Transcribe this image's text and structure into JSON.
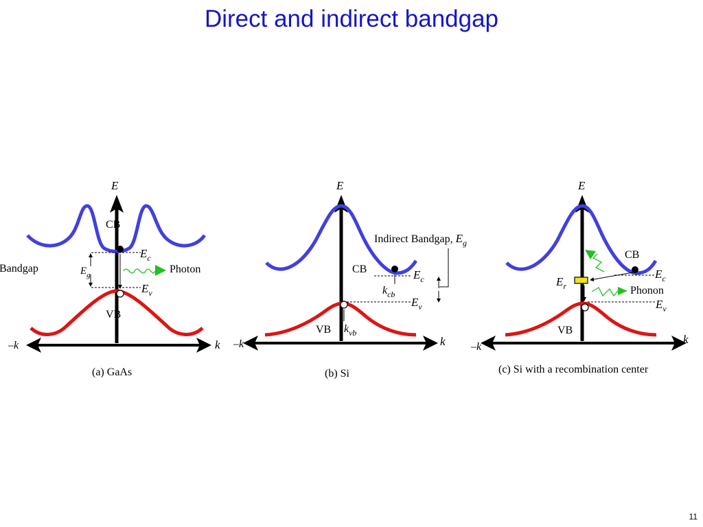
{
  "title": "Direct and indirect bandgap",
  "page_number": "11",
  "colors": {
    "title": "#1515c8",
    "cb_curve": "#4040e0",
    "vb_curve": "#dd1515",
    "photon_arrow": "#22c022",
    "trap": "#f2e21c"
  },
  "panels": {
    "a": {
      "caption": "(a) GaAs",
      "axis_e": "E",
      "axis_k": "k",
      "axis_neg_k": "–k",
      "cb": "CB",
      "vb": "VB",
      "ec": "E",
      "ec_sub": "c",
      "ev": "E",
      "ev_sub": "v",
      "eg": "E",
      "eg_sub": "g",
      "bandgap_label": "Direct Bandgap",
      "photon": "Photon"
    },
    "b": {
      "caption": "(b) Si",
      "axis_e": "E",
      "axis_k": "k",
      "axis_neg_k": "–k",
      "cb": "CB",
      "vb": "VB",
      "indirect_label": "Indirect Bandgap,",
      "eg": "E",
      "eg_sub": "g",
      "ec": "E",
      "ec_sub": "c",
      "ev": "E",
      "ev_sub": "v",
      "kcb": "k",
      "kcb_sub": "cb",
      "kvb": "k",
      "kvb_sub": "vb"
    },
    "c": {
      "caption": "(c) Si with a recombination center",
      "axis_e": "E",
      "axis_k": "k",
      "axis_neg_k": "–k",
      "cb": "CB",
      "vb": "VB",
      "er": "E",
      "er_sub": "r",
      "ec": "E",
      "ec_sub": "c",
      "ev": "E",
      "ev_sub": "v",
      "phonon": "Phonon"
    }
  }
}
